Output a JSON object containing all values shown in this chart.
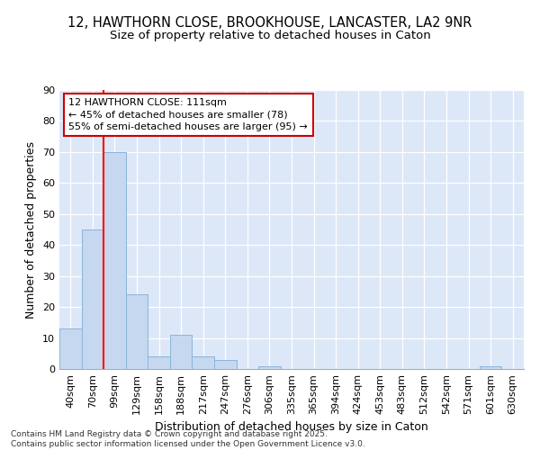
{
  "title_line1": "12, HAWTHORN CLOSE, BROOKHOUSE, LANCASTER, LA2 9NR",
  "title_line2": "Size of property relative to detached houses in Caton",
  "xlabel": "Distribution of detached houses by size in Caton",
  "ylabel": "Number of detached properties",
  "bar_values": [
    13,
    45,
    70,
    24,
    4,
    11,
    4,
    3,
    0,
    1,
    0,
    0,
    0,
    0,
    0,
    0,
    0,
    0,
    0,
    1,
    0
  ],
  "bar_labels": [
    "40sqm",
    "70sqm",
    "99sqm",
    "129sqm",
    "158sqm",
    "188sqm",
    "217sqm",
    "247sqm",
    "276sqm",
    "306sqm",
    "335sqm",
    "365sqm",
    "394sqm",
    "424sqm",
    "453sqm",
    "483sqm",
    "512sqm",
    "542sqm",
    "571sqm",
    "601sqm",
    "630sqm"
  ],
  "bar_color": "#c5d8f0",
  "bar_edge_color": "#8ab4d8",
  "vline_color": "#ff0000",
  "annotation_text": "12 HAWTHORN CLOSE: 111sqm\n← 45% of detached houses are smaller (78)\n55% of semi-detached houses are larger (95) →",
  "annotation_box_color": "white",
  "annotation_box_edge": "#cc0000",
  "ylim": [
    0,
    90
  ],
  "yticks": [
    0,
    10,
    20,
    30,
    40,
    50,
    60,
    70,
    80,
    90
  ],
  "bg_color": "#dce8f8",
  "grid_color": "white",
  "footer_text": "Contains HM Land Registry data © Crown copyright and database right 2025.\nContains public sector information licensed under the Open Government Licence v3.0.",
  "title_fontsize": 10.5,
  "subtitle_fontsize": 9.5,
  "axis_label_fontsize": 9,
  "tick_fontsize": 8,
  "annotation_fontsize": 8,
  "footer_fontsize": 6.5
}
